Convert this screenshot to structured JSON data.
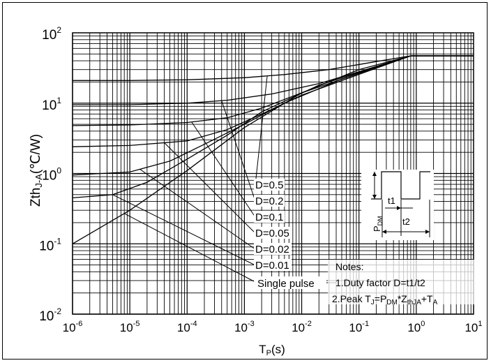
{
  "chart_data": {
    "type": "line",
    "title": "",
    "xlabel": "T",
    "xlabel_sub": "P",
    "xlabel_unit": "(s)",
    "ylabel": "Zth",
    "ylabel_sub": "J-A",
    "ylabel_unit": "(℃/W)",
    "x_scale": "log",
    "y_scale": "log",
    "xlim": [
      1e-06,
      10
    ],
    "ylim": [
      0.01,
      100
    ],
    "grid": true,
    "x_ticks": [
      {
        "base": "10",
        "exp": "-6"
      },
      {
        "base": "10",
        "exp": "-5"
      },
      {
        "base": "10",
        "exp": "-4"
      },
      {
        "base": "10",
        "exp": "-3"
      },
      {
        "base": "10",
        "exp": "-2"
      },
      {
        "base": "10",
        "exp": "-1"
      },
      {
        "base": "10",
        "exp": "0"
      },
      {
        "base": "10",
        "exp": "1"
      }
    ],
    "y_ticks": [
      {
        "base": "10",
        "exp": "-2"
      },
      {
        "base": "10",
        "exp": "-1"
      },
      {
        "base": "10",
        "exp": "0"
      },
      {
        "base": "10",
        "exp": "1"
      },
      {
        "base": "10",
        "exp": "2"
      }
    ],
    "series": [
      {
        "name": "D=0.5",
        "x": [
          1e-06,
          1e-05,
          0.0001,
          0.001,
          0.005,
          0.03,
          0.2,
          0.8,
          10
        ],
        "y": [
          21,
          21,
          21.5,
          23,
          25.5,
          30,
          39,
          47,
          47
        ]
      },
      {
        "name": "D=0.2",
        "x": [
          1e-06,
          1e-05,
          0.0001,
          0.0005,
          0.003,
          0.02,
          0.1,
          0.8,
          10
        ],
        "y": [
          9.5,
          9.5,
          10,
          11,
          13.5,
          19,
          28,
          47,
          47
        ]
      },
      {
        "name": "D=0.1",
        "x": [
          1e-06,
          1e-05,
          0.0001,
          0.0005,
          0.002,
          0.01,
          0.08,
          0.8,
          10
        ],
        "y": [
          4.8,
          4.9,
          5.3,
          6.2,
          8.5,
          14,
          25,
          47,
          47
        ]
      },
      {
        "name": "D=0.05",
        "x": [
          1e-06,
          1e-05,
          0.0001,
          0.0005,
          0.002,
          0.01,
          0.08,
          0.8,
          10
        ],
        "y": [
          2.4,
          2.5,
          2.9,
          4.2,
          7,
          13,
          24,
          47,
          47
        ]
      },
      {
        "name": "D=0.02",
        "x": [
          1e-06,
          1e-05,
          5e-05,
          0.0002,
          0.001,
          0.005,
          0.05,
          0.8,
          10
        ],
        "y": [
          0.95,
          1.05,
          1.5,
          2.6,
          5,
          10,
          22,
          47,
          47
        ]
      },
      {
        "name": "D=0.01",
        "x": [
          1e-06,
          5e-06,
          2e-05,
          0.0001,
          0.0005,
          0.002,
          0.02,
          0.8,
          10
        ],
        "y": [
          0.45,
          0.5,
          0.75,
          1.6,
          3.5,
          7.5,
          18,
          47,
          47
        ]
      },
      {
        "name": "Single pulse",
        "x": [
          1e-06,
          1e-05,
          0.0001,
          0.001,
          0.01,
          0.1,
          0.8,
          10
        ],
        "y": [
          0.1,
          0.3,
          1.1,
          4.5,
          14,
          30,
          47,
          47
        ]
      }
    ],
    "annotations": {
      "curve_labels": [
        "D=0.5",
        "D=0.2",
        "D=0.1",
        "D=0.05",
        "D=0.02",
        "D=0.01",
        "Single pulse"
      ],
      "notes_title": "Notes:",
      "note1": "1.Duty factor D=t1/t2",
      "note2_pre": "2.Peak T",
      "note2_sub1": "J",
      "note2_mid": "=P",
      "note2_sub2": "DM",
      "note2_mid2": "*Z",
      "note2_sub3": "thJA",
      "note2_mid3": "+T",
      "note2_sub4": "A",
      "pulse_t1": "t1",
      "pulse_t2": "t2",
      "pulse_p": "P",
      "pulse_p_sub": "DM"
    },
    "label_anchor_x": 0.0025
  }
}
